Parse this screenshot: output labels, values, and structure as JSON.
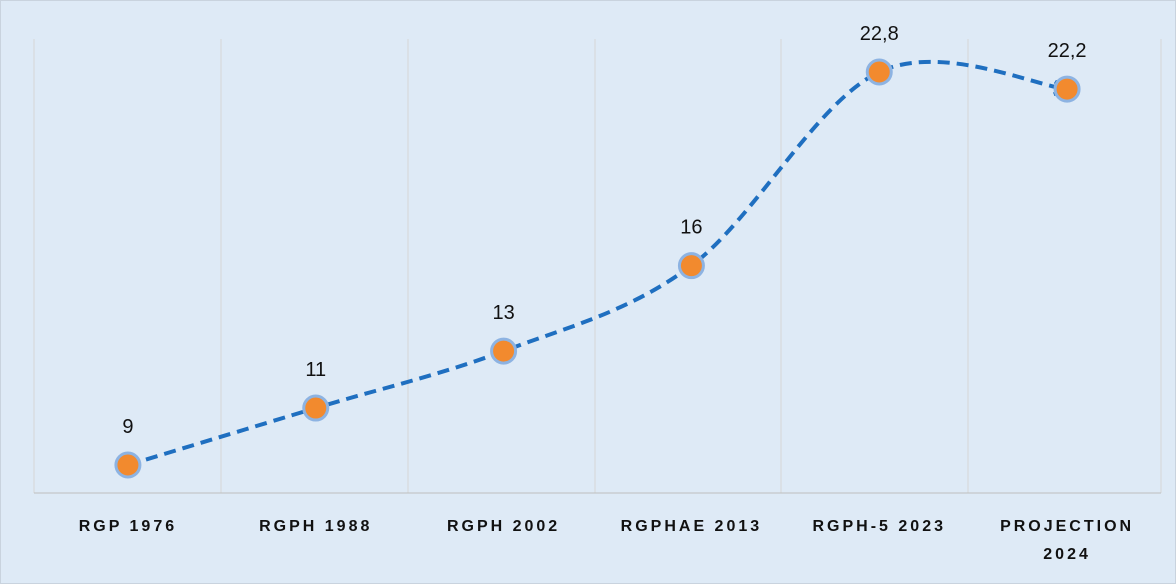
{
  "chart_data": {
    "type": "line",
    "categories": [
      "RGP 1976",
      "RGPH 1988",
      "RGPH 2002",
      "RGPHAE 2013",
      "RGPH-5 2023",
      "PROJECTION 2024"
    ],
    "series": [
      {
        "color": "#1f6fc0",
        "marker_color": "#f28a2e",
        "values": [
          9,
          11,
          13,
          16,
          22.8,
          22.2
        ],
        "value_labels": [
          "9",
          "11",
          "13",
          "16",
          "22,8",
          "22,2"
        ]
      }
    ]
  }
}
